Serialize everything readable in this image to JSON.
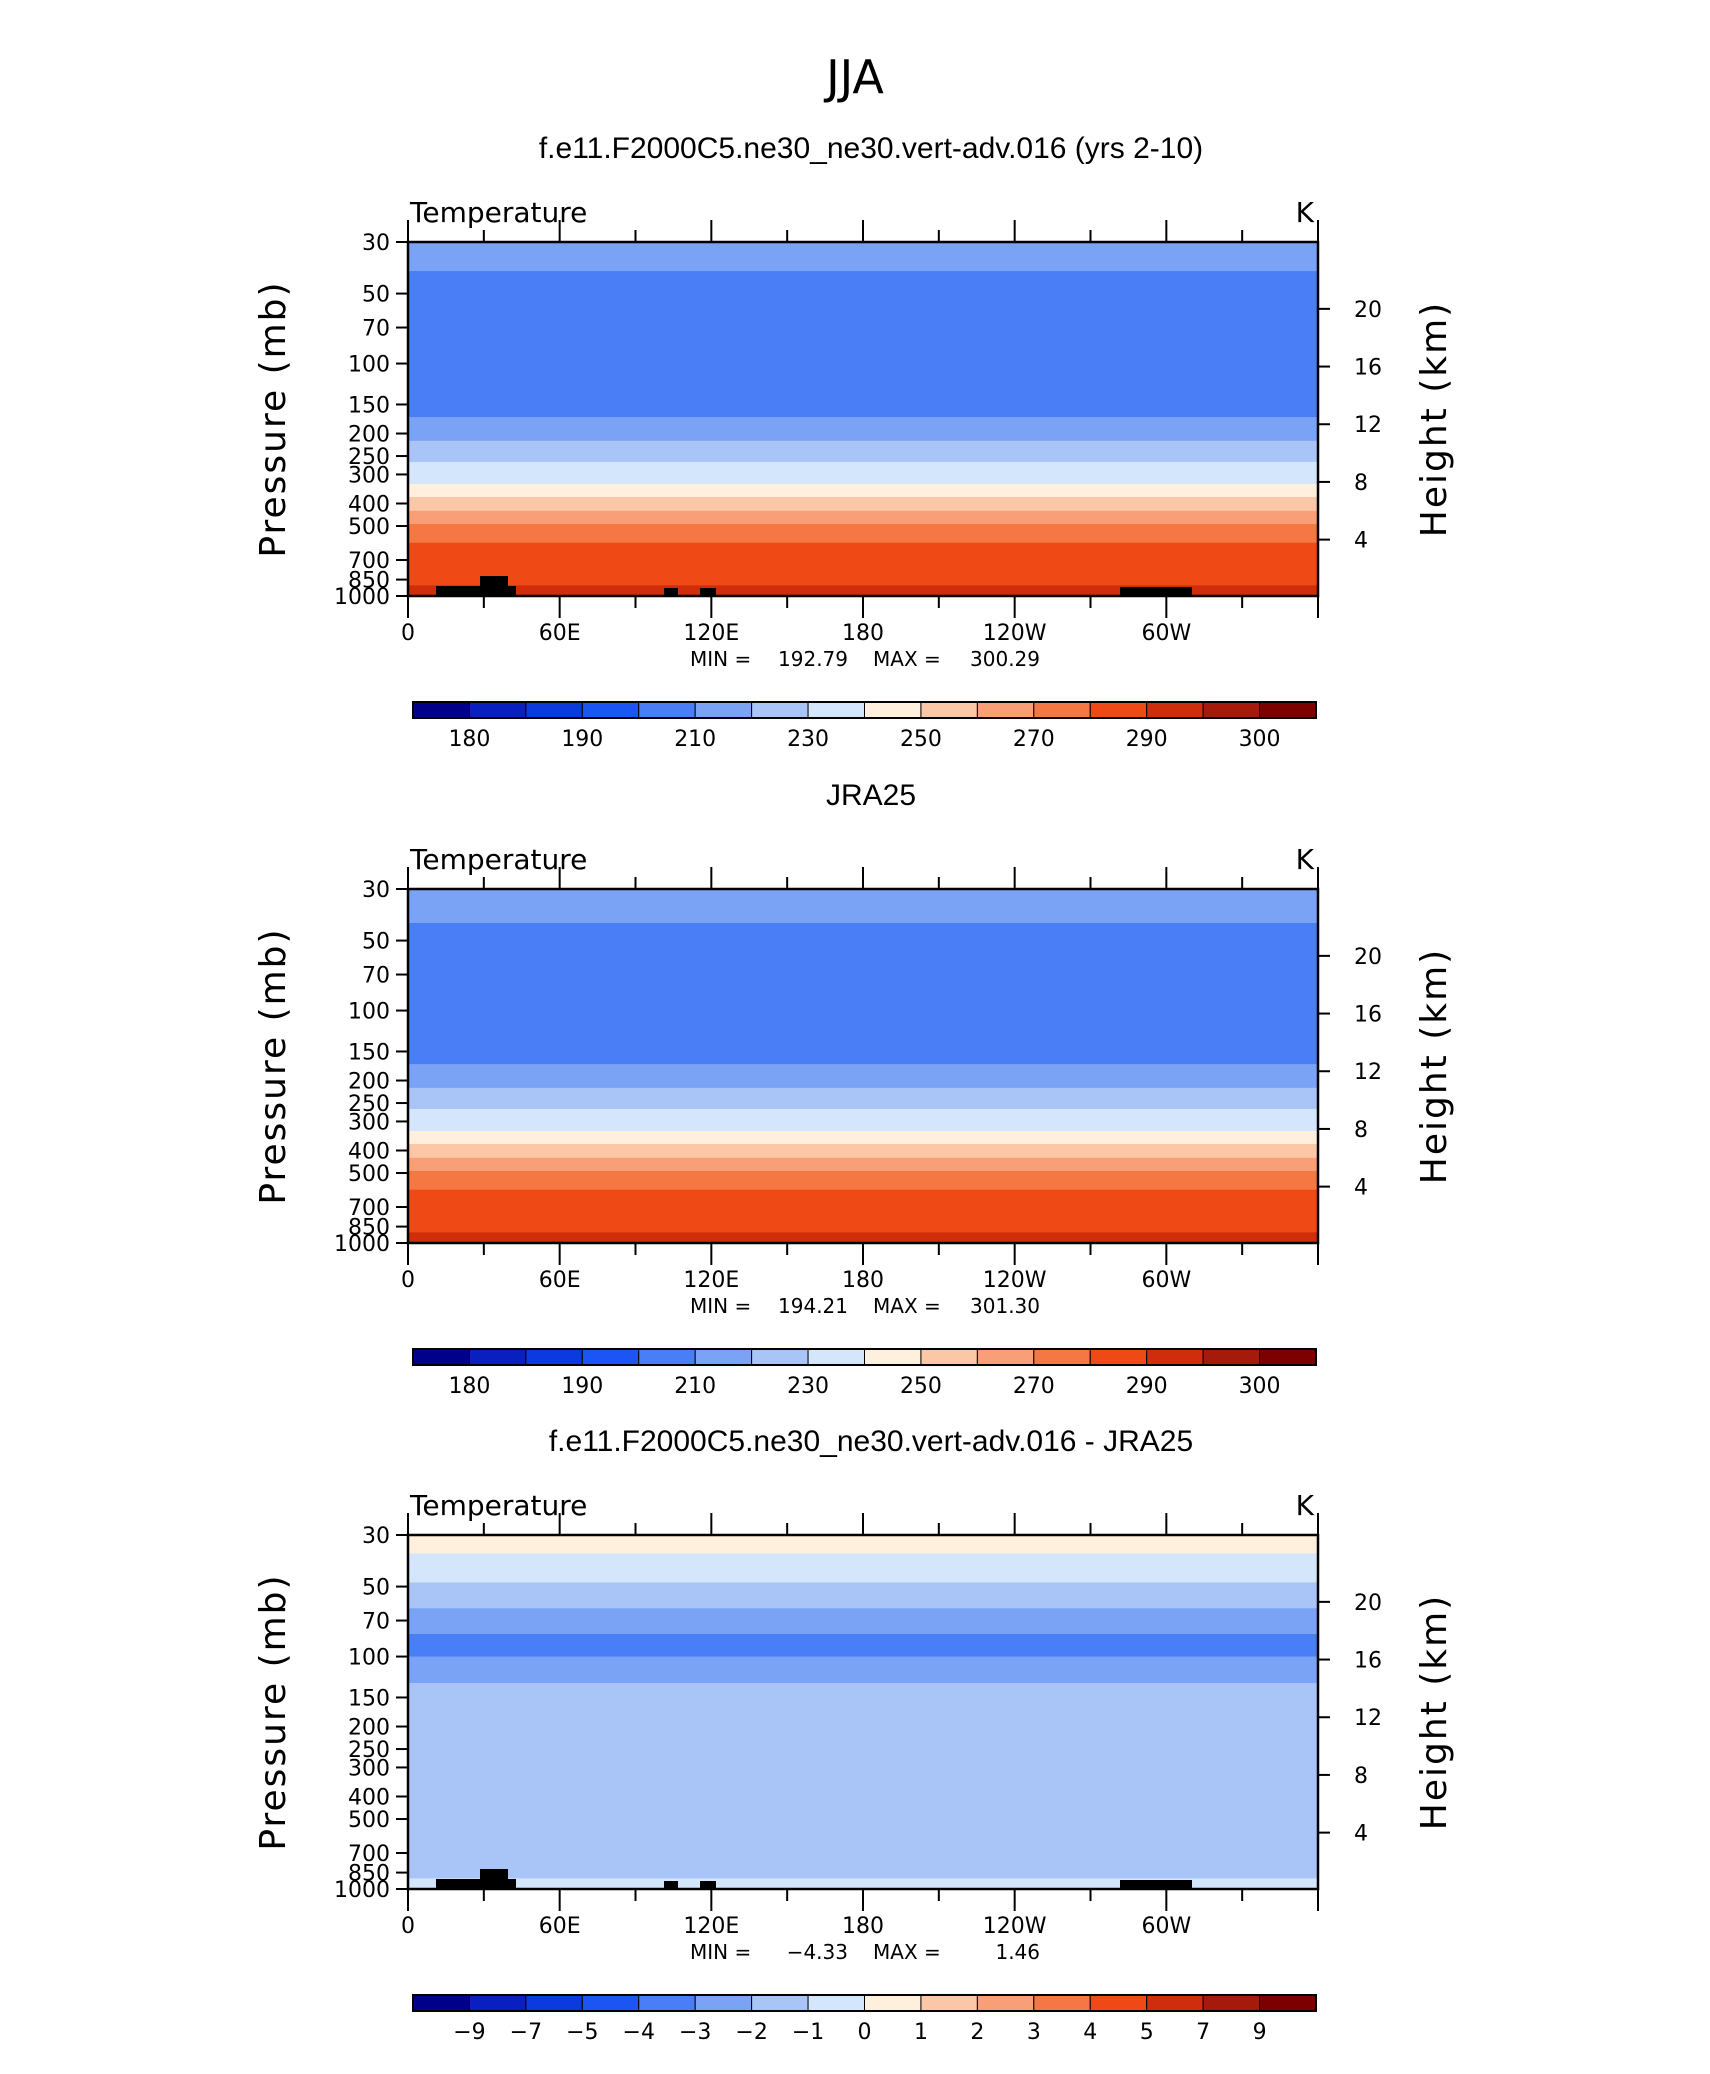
{
  "figure_title": "JJA",
  "colors": {
    "temperature_levels": [
      "#00008b",
      "#0a1fbf",
      "#0b3ae0",
      "#1b56f5",
      "#4a7ef7",
      "#7aa3f5",
      "#a9c5f7",
      "#d3e6fb",
      "#fff0dd",
      "#fcc7a7",
      "#f99f78",
      "#f57744",
      "#ef4a15",
      "#cf2d0c",
      "#a51a0a",
      "#7d0000"
    ],
    "difference_levels": [
      "#00008b",
      "#0a1fbf",
      "#0b3ae0",
      "#1b56f5",
      "#4a7ef7",
      "#7aa3f5",
      "#a9c5f7",
      "#d3e6fb",
      "#fff0dd",
      "#fcc7a7",
      "#f99f78",
      "#f57744",
      "#ef4a15",
      "#cf2d0c",
      "#a51a0a",
      "#7d0000"
    ],
    "topography": "#000000"
  },
  "panels": [
    {
      "title": "f.e11.F2000C5.ne30_ne30.vert-adv.016 (yrs 2-10)",
      "variable": "Temperature",
      "units": "K",
      "stats": {
        "min_label": "MIN =",
        "min": "192.79",
        "max_label": "MAX =",
        "max": "300.29"
      }
    },
    {
      "title": "JRA25",
      "variable": "Temperature",
      "units": "K",
      "stats": {
        "min_label": "MIN =",
        "min": "194.21",
        "max_label": "MAX =",
        "max": "301.30"
      }
    },
    {
      "title": "f.e11.F2000C5.ne30_ne30.vert-adv.016 - JRA25",
      "variable": "Temperature",
      "units": "K",
      "stats": {
        "min_label": "MIN =",
        "min": "−4.33",
        "max_label": "MAX =",
        "max": "1.46"
      }
    }
  ],
  "chart_data": [
    {
      "type": "heatmap",
      "title": "f.e11.F2000C5.ne30_ne30.vert-adv.016 (yrs 2-10)",
      "subtitle": "Temperature",
      "units": "K",
      "xlabel": "",
      "ylabel": "Pressure (mb)",
      "y2label": "Height (km)",
      "x_ticks": [
        "0",
        "60E",
        "120E",
        "180",
        "120W",
        "60W"
      ],
      "y_ticks": [
        30,
        50,
        70,
        100,
        150,
        200,
        250,
        300,
        400,
        500,
        700,
        850,
        1000
      ],
      "y2_ticks": [
        20,
        16,
        12,
        8,
        4
      ],
      "y_scale": "log",
      "ylim": [
        30,
        1000
      ],
      "contour_levels": [
        180,
        185,
        190,
        200,
        210,
        220,
        230,
        240,
        250,
        260,
        270,
        280,
        290,
        295,
        300
      ],
      "colorbar_labels": [
        "180",
        "190",
        "210",
        "230",
        "250",
        "270",
        "290",
        "300"
      ],
      "level_bounds_mb": [
        30,
        40,
        63,
        130,
        170,
        215,
        265,
        330,
        375,
        430,
        490,
        590,
        690,
        900,
        1000
      ],
      "level_values": [
        215,
        205,
        200,
        205,
        215,
        225,
        235,
        245,
        255,
        265,
        275,
        282,
        288,
        293
      ],
      "min": 192.79,
      "max": 300.29
    },
    {
      "type": "heatmap",
      "title": "JRA25",
      "subtitle": "Temperature",
      "units": "K",
      "xlabel": "",
      "ylabel": "Pressure (mb)",
      "y2label": "Height (km)",
      "x_ticks": [
        "0",
        "60E",
        "120E",
        "180",
        "120W",
        "60W"
      ],
      "y_ticks": [
        30,
        50,
        70,
        100,
        150,
        200,
        250,
        300,
        400,
        500,
        700,
        850,
        1000
      ],
      "y2_ticks": [
        20,
        16,
        12,
        8,
        4
      ],
      "y_scale": "log",
      "ylim": [
        30,
        1000
      ],
      "contour_levels": [
        180,
        185,
        190,
        200,
        210,
        220,
        230,
        240,
        250,
        260,
        270,
        280,
        290,
        295,
        300
      ],
      "colorbar_labels": [
        "180",
        "190",
        "210",
        "230",
        "250",
        "270",
        "290",
        "300"
      ],
      "level_bounds_mb": [
        30,
        42,
        90,
        125,
        170,
        215,
        265,
        330,
        375,
        430,
        490,
        590,
        690,
        900,
        1000
      ],
      "level_values": [
        215,
        205,
        200,
        205,
        215,
        225,
        235,
        245,
        255,
        265,
        275,
        282,
        288,
        293
      ],
      "min": 194.21,
      "max": 301.3
    },
    {
      "type": "heatmap",
      "title": "f.e11.F2000C5.ne30_ne30.vert-adv.016 - JRA25",
      "subtitle": "Temperature",
      "units": "K",
      "xlabel": "",
      "ylabel": "Pressure (mb)",
      "y2label": "Height (km)",
      "x_ticks": [
        "0",
        "60E",
        "120E",
        "180",
        "120W",
        "60W"
      ],
      "y_ticks": [
        30,
        50,
        70,
        100,
        150,
        200,
        250,
        300,
        400,
        500,
        700,
        850,
        1000
      ],
      "y2_ticks": [
        20,
        16,
        12,
        8,
        4
      ],
      "y_scale": "log",
      "ylim": [
        30,
        1000
      ],
      "contour_levels": [
        -9,
        -7,
        -5,
        -4,
        -3,
        -2,
        -1,
        0,
        1,
        2,
        3,
        4,
        5,
        7,
        9
      ],
      "colorbar_labels": [
        "−9",
        "−7",
        "−5",
        "−4",
        "−3",
        "−2",
        "−1",
        "0",
        "1",
        "2",
        "3",
        "4",
        "5",
        "7",
        "9"
      ],
      "level_bounds_mb": [
        30,
        36,
        48,
        62,
        80,
        100,
        130,
        900,
        1000
      ],
      "level_values": [
        0.5,
        -0.5,
        -1.5,
        -2.5,
        -3.5,
        -2.5,
        -1.5,
        -0.5
      ],
      "min": -4.33,
      "max": 1.46
    }
  ]
}
